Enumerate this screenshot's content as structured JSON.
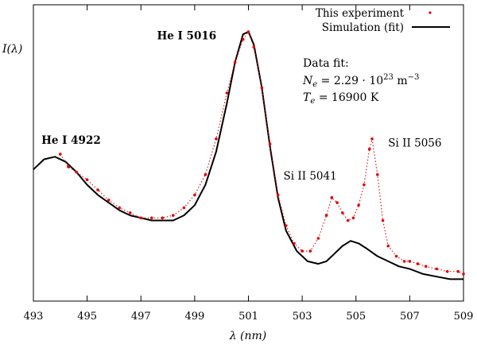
{
  "chart_data": {
    "type": "line",
    "xlabel": "λ (nm)",
    "ylabel": "I(λ)",
    "xlim": [
      493,
      509
    ],
    "ylim": [
      0,
      1
    ],
    "xticks": [
      493,
      495,
      497,
      499,
      501,
      503,
      505,
      507,
      509
    ],
    "grid": false,
    "legend": {
      "placement": "top-right",
      "entries": [
        {
          "label": "This experiment",
          "style": "red dots"
        },
        {
          "label": "Simulation (fit)",
          "style": "black line"
        }
      ]
    },
    "annotations": [
      {
        "text": "He I 4922",
        "x": 493.3,
        "y": 0.56,
        "bold": true
      },
      {
        "text": "He I 5016",
        "x": 497.6,
        "y": 0.97,
        "bold": true
      },
      {
        "text": "Si II 5041",
        "x": 502.3,
        "y": 0.42,
        "bold": false
      },
      {
        "text": "Si II 5056",
        "x": 506.2,
        "y": 0.55,
        "bold": false
      }
    ],
    "fit_box": {
      "title": "Data fit:",
      "line1": "Ne = 2.29 · 10^23 m^-3",
      "line2": "Te = 16900 K",
      "ne_mantissa": "2.29",
      "ne_exp": "23",
      "te_value": "16900 K"
    },
    "series": [
      {
        "name": "This experiment",
        "color": "#e00000",
        "x": [
          494.0,
          494.3,
          494.6,
          495.0,
          495.4,
          495.8,
          496.2,
          496.6,
          497.0,
          497.4,
          497.8,
          498.2,
          498.6,
          499.0,
          499.4,
          499.8,
          500.2,
          500.5,
          500.8,
          501.0,
          501.2,
          501.5,
          501.8,
          502.1,
          502.4,
          502.7,
          503.0,
          503.3,
          503.6,
          503.9,
          504.1,
          504.3,
          504.5,
          504.7,
          504.9,
          505.1,
          505.3,
          505.5,
          505.6,
          505.8,
          506.0,
          506.2,
          506.5,
          506.8,
          507.0,
          507.3,
          507.6,
          508.0,
          508.4,
          508.8,
          509.0
        ],
        "y": [
          0.52,
          0.47,
          0.45,
          0.42,
          0.38,
          0.34,
          0.31,
          0.29,
          0.27,
          0.27,
          0.27,
          0.28,
          0.31,
          0.36,
          0.44,
          0.58,
          0.76,
          0.88,
          0.97,
          1.0,
          0.94,
          0.78,
          0.56,
          0.36,
          0.24,
          0.17,
          0.14,
          0.14,
          0.19,
          0.28,
          0.35,
          0.33,
          0.29,
          0.26,
          0.27,
          0.32,
          0.4,
          0.54,
          0.58,
          0.44,
          0.26,
          0.16,
          0.12,
          0.1,
          0.1,
          0.09,
          0.08,
          0.07,
          0.06,
          0.06,
          0.05
        ]
      },
      {
        "name": "Simulation (fit)",
        "color": "#000000",
        "x": [
          493.0,
          493.4,
          493.8,
          494.2,
          494.6,
          495.0,
          495.4,
          495.8,
          496.2,
          496.6,
          497.0,
          497.4,
          497.8,
          498.2,
          498.6,
          499.0,
          499.4,
          499.8,
          500.2,
          500.5,
          500.8,
          501.0,
          501.2,
          501.5,
          501.8,
          502.1,
          502.4,
          502.8,
          503.2,
          503.6,
          503.9,
          504.2,
          504.5,
          504.8,
          505.1,
          505.4,
          505.8,
          506.2,
          506.6,
          507.0,
          507.5,
          508.0,
          508.5,
          509.0
        ],
        "y": [
          0.46,
          0.5,
          0.51,
          0.49,
          0.45,
          0.4,
          0.36,
          0.33,
          0.3,
          0.28,
          0.27,
          0.26,
          0.26,
          0.26,
          0.28,
          0.32,
          0.4,
          0.53,
          0.72,
          0.88,
          0.99,
          1.0,
          0.95,
          0.78,
          0.55,
          0.35,
          0.22,
          0.14,
          0.1,
          0.09,
          0.1,
          0.13,
          0.16,
          0.18,
          0.17,
          0.15,
          0.12,
          0.1,
          0.08,
          0.07,
          0.05,
          0.04,
          0.03,
          0.03
        ]
      }
    ]
  }
}
